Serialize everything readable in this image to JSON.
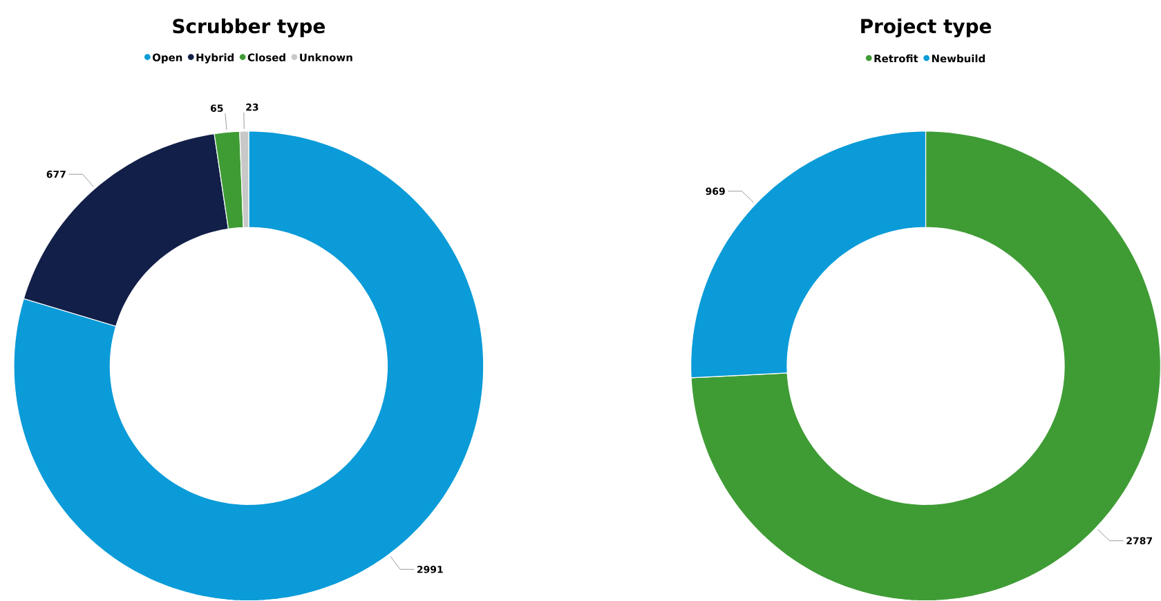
{
  "chart_data": [
    {
      "type": "donut",
      "title": "Scrubber type",
      "categories": [
        "Open",
        "Hybrid",
        "Closed",
        "Unknown"
      ],
      "values": [
        2991,
        677,
        65,
        23
      ],
      "colors": [
        "#0a9bd8",
        "#121f48",
        "#3f9c35",
        "#c8c8c8"
      ],
      "data_labels": true,
      "legend": "top"
    },
    {
      "type": "donut",
      "title": "Project type",
      "categories": [
        "Retrofit",
        "Newbuild"
      ],
      "values": [
        2787,
        969
      ],
      "colors": [
        "#3f9c35",
        "#0a9bd8"
      ],
      "data_labels": true,
      "legend": "top"
    }
  ]
}
